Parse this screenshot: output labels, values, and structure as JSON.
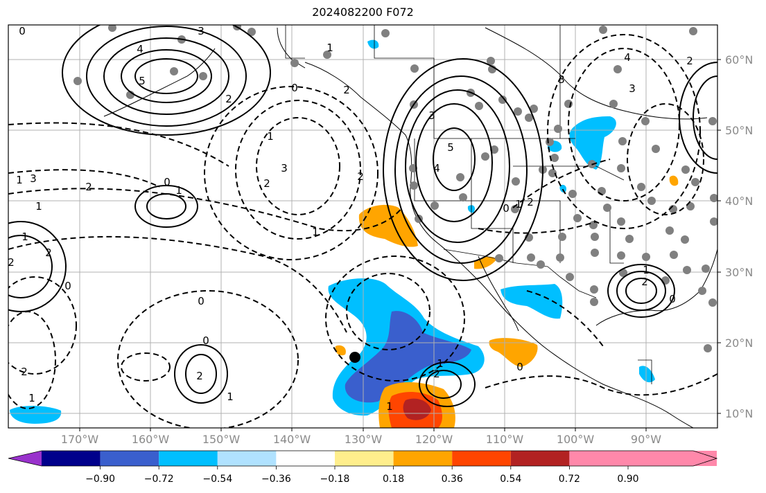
{
  "title": "2024082200 F072",
  "lat_labels": [
    "60°N",
    "50°N",
    "40°N",
    "30°N",
    "20°N",
    "10°N"
  ],
  "lon_labels": [
    "170°W",
    "160°W",
    "150°W",
    "140°W",
    "130°W",
    "120°W",
    "110°W",
    "100°W",
    "90°W"
  ],
  "colorbar": {
    "labels": [
      "−0.90",
      "−0.72",
      "−0.54",
      "−0.36",
      "−0.18",
      "0.18",
      "0.36",
      "0.54",
      "0.72",
      "0.90"
    ],
    "colors": [
      "#9932cc",
      "#00008b",
      "#3a5fcd",
      "#00bfff",
      "#b0e2ff",
      "#ffffff",
      "#ffee8c",
      "#ffa500",
      "#ff4500",
      "#b22222",
      "#ff88aa"
    ]
  },
  "contour_labels": [
    "3",
    "4",
    "5",
    "2",
    "1",
    "0",
    "2",
    "3",
    "1",
    "2",
    "1",
    "0",
    "1",
    "3",
    "2",
    "1",
    "0",
    "1",
    "2",
    "1",
    "0",
    "0",
    "2",
    "2",
    "1",
    "2",
    "0",
    "1",
    "2",
    "3",
    "4",
    "5",
    "0",
    "1",
    "2",
    "3",
    "4",
    "3",
    "2",
    "0",
    "1",
    "2",
    "0",
    "1",
    "1",
    "2"
  ],
  "fill_colors": {
    "light_blue": "#00bfff",
    "medium_blue": "#3a5fcd",
    "orange": "#ffa500",
    "red_orange": "#ff4500",
    "dark_red": "#b22222"
  }
}
